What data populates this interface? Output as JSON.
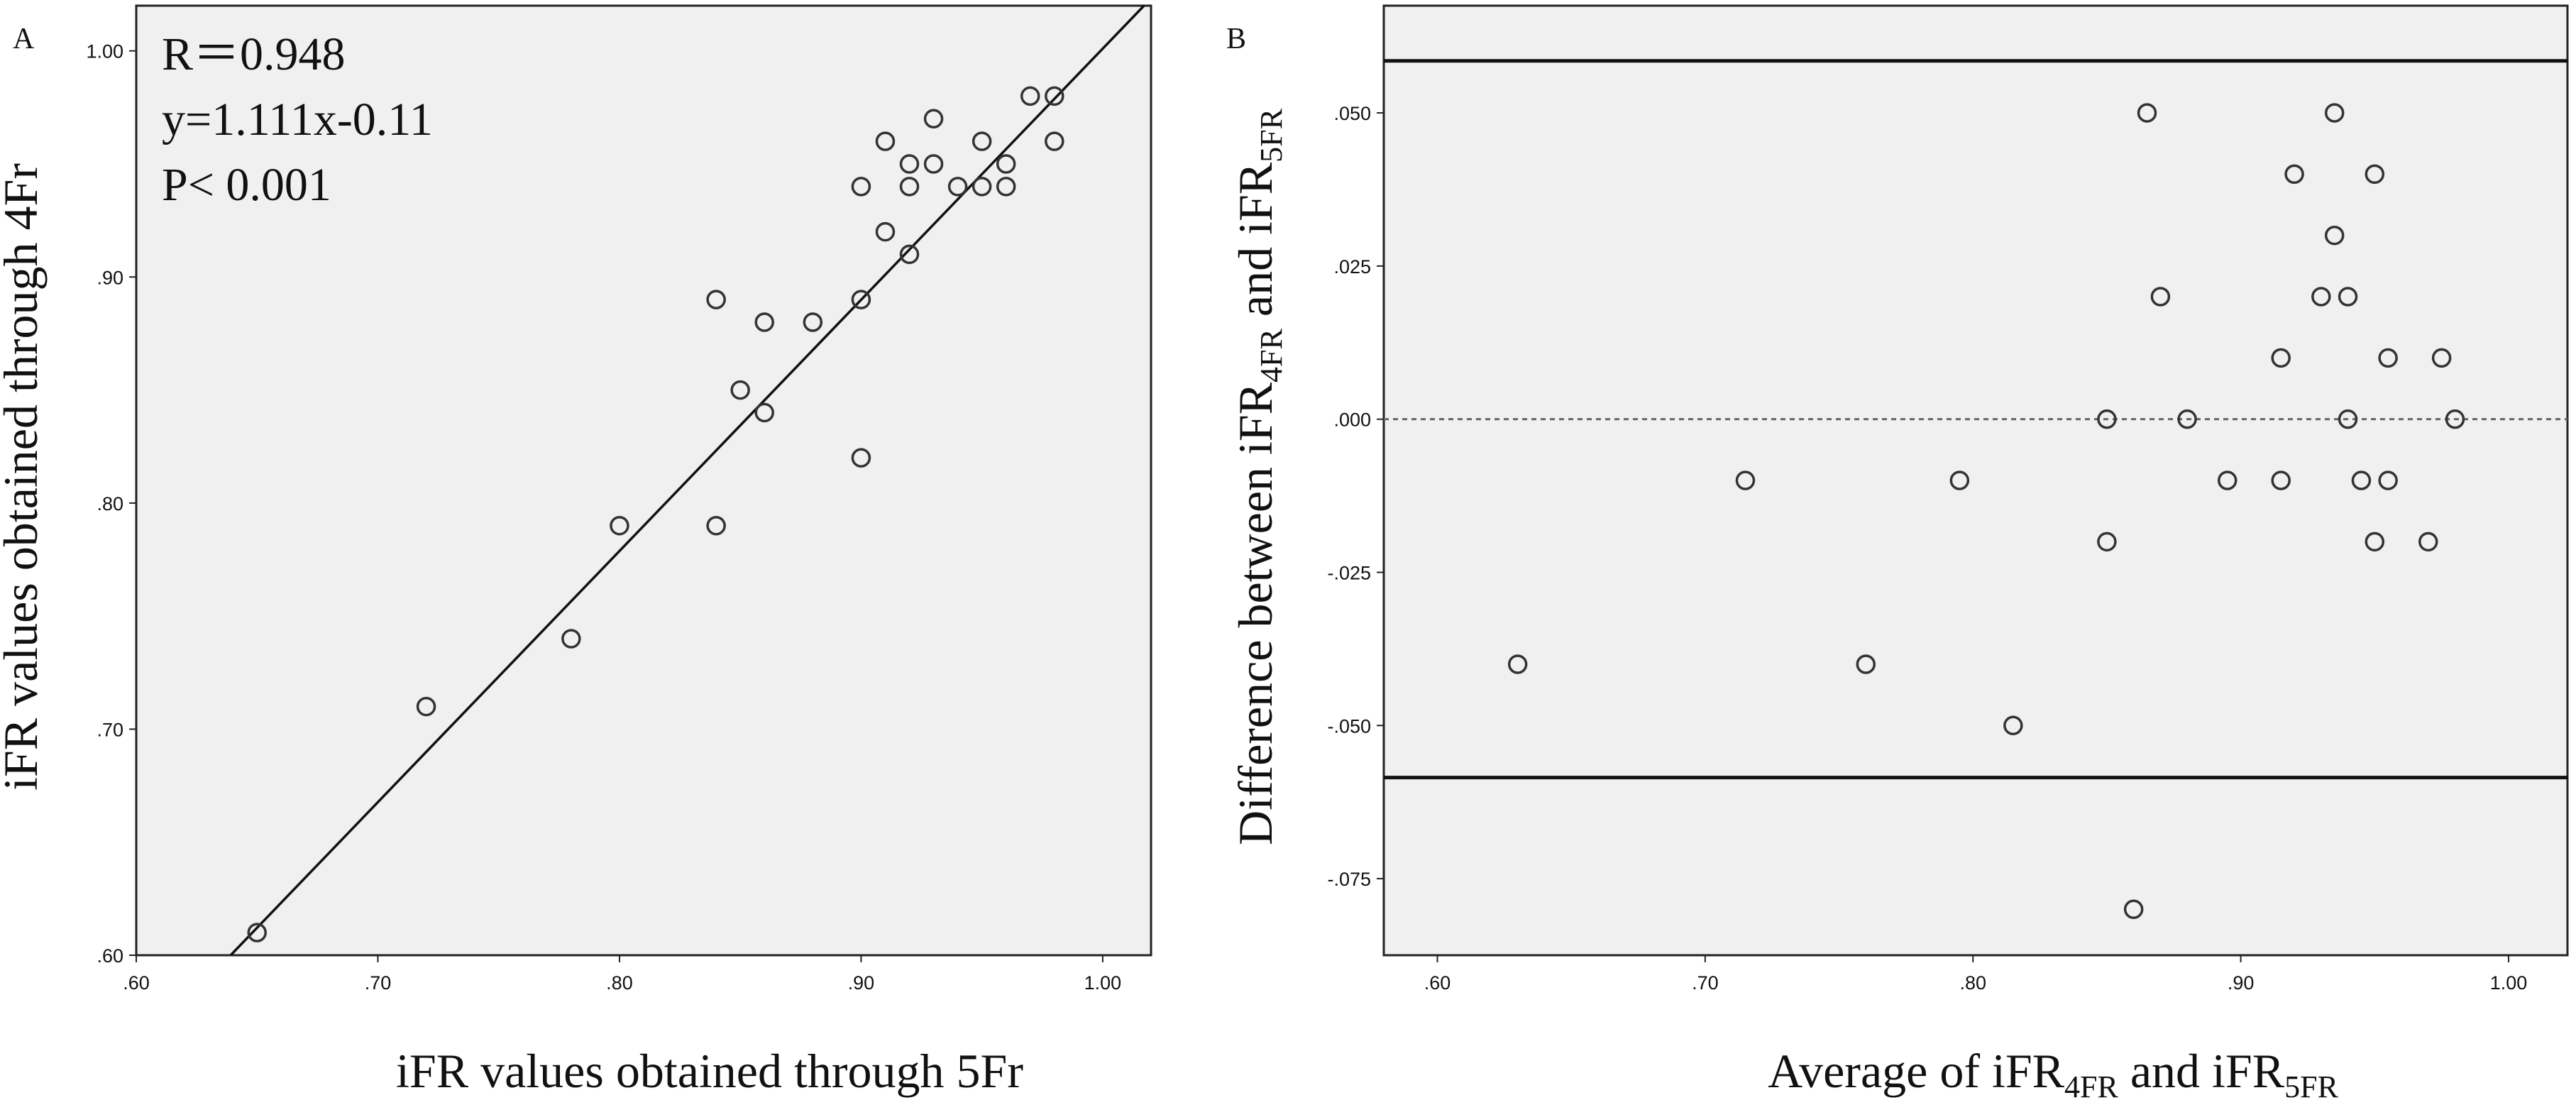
{
  "colors": {
    "plot_background": "#f0f0f0",
    "marker_stroke": "#333333",
    "line": "#111111"
  },
  "chart_data": [
    {
      "type": "scatter",
      "panel_label": "A",
      "xlabel": "iFR values obtained through 5Fr",
      "ylabel": "iFR values obtained through 4Fr",
      "xlim": [
        0.6,
        1.02
      ],
      "ylim": [
        0.6,
        1.02
      ],
      "x_ticks": [
        0.6,
        0.7,
        0.8,
        0.9,
        1.0
      ],
      "x_tick_labels": [
        ".60",
        ".70",
        ".80",
        ".90",
        "1.00"
      ],
      "y_ticks": [
        0.6,
        0.7,
        0.8,
        0.9,
        1.0
      ],
      "y_tick_labels": [
        ".60",
        ".70",
        ".80",
        ".90",
        "1.00"
      ],
      "annotations": [
        "R＝0.948",
        "y=1.111x-0.11",
        "P< 0.001"
      ],
      "regression_line": {
        "slope": 1.111,
        "intercept": -0.11
      },
      "grid": false,
      "points": [
        {
          "x": 0.65,
          "y": 0.61
        },
        {
          "x": 0.72,
          "y": 0.71
        },
        {
          "x": 0.78,
          "y": 0.74
        },
        {
          "x": 0.8,
          "y": 0.79
        },
        {
          "x": 0.84,
          "y": 0.79
        },
        {
          "x": 0.84,
          "y": 0.89
        },
        {
          "x": 0.85,
          "y": 0.85
        },
        {
          "x": 0.86,
          "y": 0.84
        },
        {
          "x": 0.86,
          "y": 0.88
        },
        {
          "x": 0.88,
          "y": 0.88
        },
        {
          "x": 0.9,
          "y": 0.82
        },
        {
          "x": 0.9,
          "y": 0.89
        },
        {
          "x": 0.9,
          "y": 0.94
        },
        {
          "x": 0.91,
          "y": 0.92
        },
        {
          "x": 0.91,
          "y": 0.96
        },
        {
          "x": 0.92,
          "y": 0.91
        },
        {
          "x": 0.92,
          "y": 0.94
        },
        {
          "x": 0.92,
          "y": 0.95
        },
        {
          "x": 0.93,
          "y": 0.95
        },
        {
          "x": 0.93,
          "y": 0.97
        },
        {
          "x": 0.94,
          "y": 0.94
        },
        {
          "x": 0.95,
          "y": 0.94
        },
        {
          "x": 0.95,
          "y": 0.96
        },
        {
          "x": 0.96,
          "y": 0.94
        },
        {
          "x": 0.96,
          "y": 0.95
        },
        {
          "x": 0.97,
          "y": 0.98
        },
        {
          "x": 0.98,
          "y": 0.96
        },
        {
          "x": 0.98,
          "y": 0.98
        }
      ]
    },
    {
      "type": "scatter",
      "panel_label": "B",
      "xlabel_parts": [
        {
          "t": "Average of iFR",
          "sub": false
        },
        {
          "t": "4FR",
          "sub": true
        },
        {
          "t": " and iFR",
          "sub": false
        },
        {
          "t": "5FR",
          "sub": true
        }
      ],
      "ylabel_parts": [
        {
          "t": "Difference between iFR",
          "sub": false
        },
        {
          "t": "4FR",
          "sub": true
        },
        {
          "t": " and iFR",
          "sub": false
        },
        {
          "t": "5FR",
          "sub": true
        }
      ],
      "xlim": [
        0.58,
        1.022
      ],
      "ylim": [
        -0.0875,
        0.0675
      ],
      "x_ticks": [
        0.6,
        0.7,
        0.8,
        0.9,
        1.0
      ],
      "x_tick_labels": [
        ".60",
        ".70",
        ".80",
        ".90",
        "1.00"
      ],
      "y_ticks": [
        0.05,
        0.025,
        0.0,
        -0.025,
        -0.05,
        -0.075
      ],
      "y_tick_labels": [
        ".050",
        ".025",
        ".000",
        "-.025",
        "-.050",
        "-.075"
      ],
      "reference_lines": [
        {
          "y": 0.0585,
          "style": "solid"
        },
        {
          "y": 0.0,
          "style": "dashed"
        },
        {
          "y": -0.0585,
          "style": "solid"
        }
      ],
      "grid": false,
      "points": [
        {
          "x": 0.63,
          "y": -0.04
        },
        {
          "x": 0.715,
          "y": -0.01
        },
        {
          "x": 0.76,
          "y": -0.04
        },
        {
          "x": 0.795,
          "y": -0.01
        },
        {
          "x": 0.815,
          "y": -0.05
        },
        {
          "x": 0.85,
          "y": 0.0
        },
        {
          "x": 0.85,
          "y": -0.02
        },
        {
          "x": 0.86,
          "y": -0.08
        },
        {
          "x": 0.865,
          "y": 0.05
        },
        {
          "x": 0.87,
          "y": 0.02
        },
        {
          "x": 0.88,
          "y": 0.0
        },
        {
          "x": 0.895,
          "y": -0.01
        },
        {
          "x": 0.915,
          "y": 0.01
        },
        {
          "x": 0.915,
          "y": -0.01
        },
        {
          "x": 0.92,
          "y": 0.04
        },
        {
          "x": 0.93,
          "y": 0.02
        },
        {
          "x": 0.935,
          "y": 0.05
        },
        {
          "x": 0.935,
          "y": 0.03
        },
        {
          "x": 0.94,
          "y": 0.02
        },
        {
          "x": 0.94,
          "y": 0.0
        },
        {
          "x": 0.945,
          "y": -0.01
        },
        {
          "x": 0.95,
          "y": 0.04
        },
        {
          "x": 0.95,
          "y": -0.02
        },
        {
          "x": 0.955,
          "y": 0.01
        },
        {
          "x": 0.955,
          "y": -0.01
        },
        {
          "x": 0.97,
          "y": -0.02
        },
        {
          "x": 0.975,
          "y": 0.01
        },
        {
          "x": 0.98,
          "y": 0.0
        }
      ]
    }
  ]
}
